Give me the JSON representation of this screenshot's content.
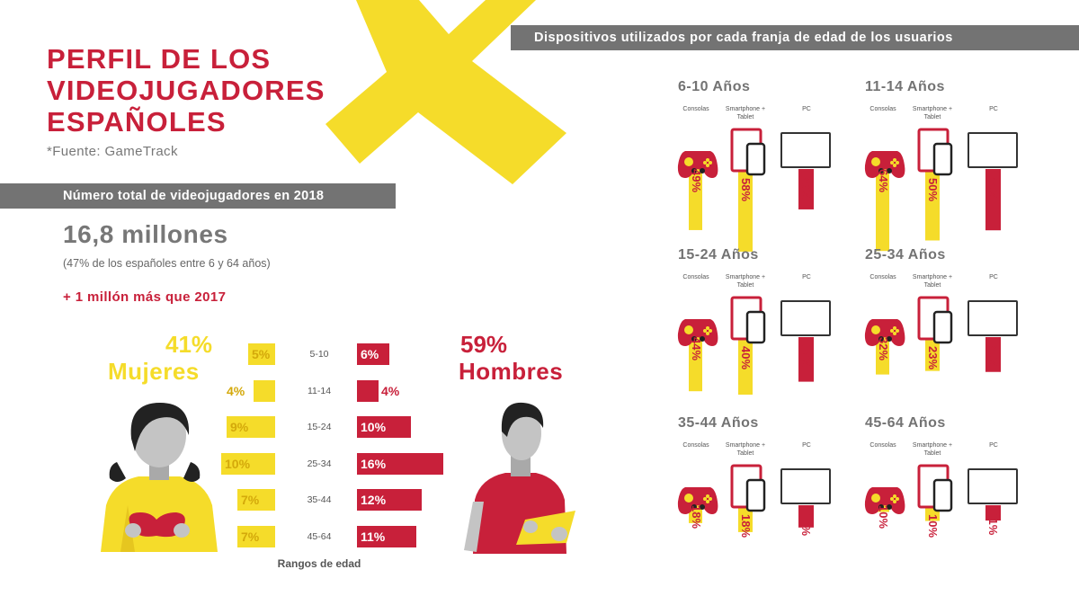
{
  "header": {
    "title_lines": [
      "PERFIL DE LOS",
      "VIDEOJUGADORES",
      "ESPAÑOLES"
    ],
    "source": "*Fuente: GameTrack"
  },
  "totals": {
    "band_label": "Número total de videojugadores en 2018",
    "total": "16,8 millones",
    "total_note": "(47% de los españoles entre 6 y 64 años)",
    "increase": "+ 1 millón más que 2017"
  },
  "gender": {
    "women_pct": "41%",
    "women_label": "Mujeres",
    "men_pct": "59%",
    "men_label": "Hombres"
  },
  "devices_band": "Dispositivos utilizados por cada franja de edad de los usuarios",
  "colors": {
    "red": "#c8203a",
    "yellow": "#f5dc2a",
    "gray": "#737373"
  },
  "chart_data": [
    {
      "type": "bar",
      "xlabel": "Rangos de edad",
      "categories": [
        "5-10",
        "11-14",
        "15-24",
        "25-34",
        "35-44",
        "45-64"
      ],
      "series": [
        {
          "name": "Mujeres",
          "values": [
            5,
            4,
            9,
            10,
            7,
            7
          ],
          "labels": [
            "5%",
            "4%",
            "9%",
            "10%",
            "7%",
            "7%"
          ]
        },
        {
          "name": "Hombres",
          "values": [
            6,
            4,
            10,
            16,
            12,
            11
          ],
          "labels": [
            "6%",
            "4%",
            "10%",
            "16%",
            "12%",
            "11%"
          ]
        }
      ]
    },
    {
      "type": "bar",
      "device_labels": {
        "consoles": "Consolas",
        "smartphone": "Smartphone + Tablet",
        "pc": "PC"
      },
      "groups": [
        {
          "title": "6-10 Años",
          "consoles": 49,
          "smartphone": 58,
          "pc": 29
        },
        {
          "title": "11-14 Años",
          "consoles": 64,
          "smartphone": 50,
          "pc": 44
        },
        {
          "title": "15-24 Años",
          "consoles": 44,
          "smartphone": 40,
          "pc": 32
        },
        {
          "title": "25-34 Años",
          "consoles": 32,
          "smartphone": 23,
          "pc": 25
        },
        {
          "title": "35-44 Años",
          "consoles": 18,
          "smartphone": 18,
          "pc": 16
        },
        {
          "title": "45-64 Años",
          "consoles": 10,
          "smartphone": 10,
          "pc": 11
        }
      ]
    }
  ]
}
